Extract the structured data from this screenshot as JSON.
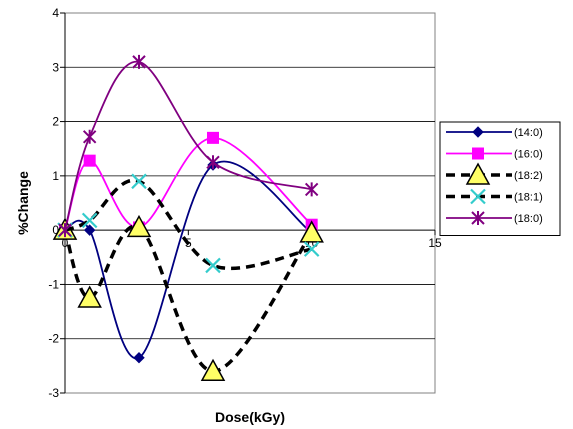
{
  "chart_data": {
    "type": "line",
    "title": "",
    "xlabel": "Dose(kGy)",
    "ylabel": "%Change",
    "xlim": [
      0,
      15
    ],
    "ylim": [
      -3,
      4
    ],
    "xticks": [
      0,
      5,
      10,
      15
    ],
    "yticks": [
      -3,
      -2,
      -1,
      0,
      1,
      2,
      3,
      4
    ],
    "grid": "horizontal",
    "legend_position": "right",
    "series": [
      {
        "name": "(14:0)",
        "color": "#000080",
        "marker": "diamond",
        "line_style": "solid",
        "x": [
          0,
          1,
          3,
          6,
          10
        ],
        "y": [
          0,
          0,
          -2.35,
          1.2,
          -0.05
        ]
      },
      {
        "name": "(16:0)",
        "color": "#FF00FF",
        "marker": "square",
        "line_style": "solid",
        "x": [
          0,
          1,
          3,
          6,
          10
        ],
        "y": [
          0,
          1.28,
          0.05,
          1.7,
          0.1
        ]
      },
      {
        "name": "(18:2)",
        "color": "#000000",
        "marker": "triangle",
        "line_style": "dashed",
        "x": [
          0,
          1,
          3,
          6,
          10
        ],
        "y": [
          0,
          -1.25,
          0.05,
          -2.6,
          -0.05
        ]
      },
      {
        "name": "(18:1)",
        "color": "#000000",
        "marker": "x",
        "line_style": "dashed",
        "x": [
          0,
          1,
          3,
          6,
          10
        ],
        "y": [
          0,
          0.18,
          0.9,
          -0.65,
          -0.35
        ]
      },
      {
        "name": "(18:0)",
        "color": "#800080",
        "marker": "star",
        "line_style": "solid",
        "x": [
          0,
          1,
          3,
          6,
          10
        ],
        "y": [
          0,
          1.72,
          3.1,
          1.25,
          0.75
        ]
      }
    ]
  }
}
